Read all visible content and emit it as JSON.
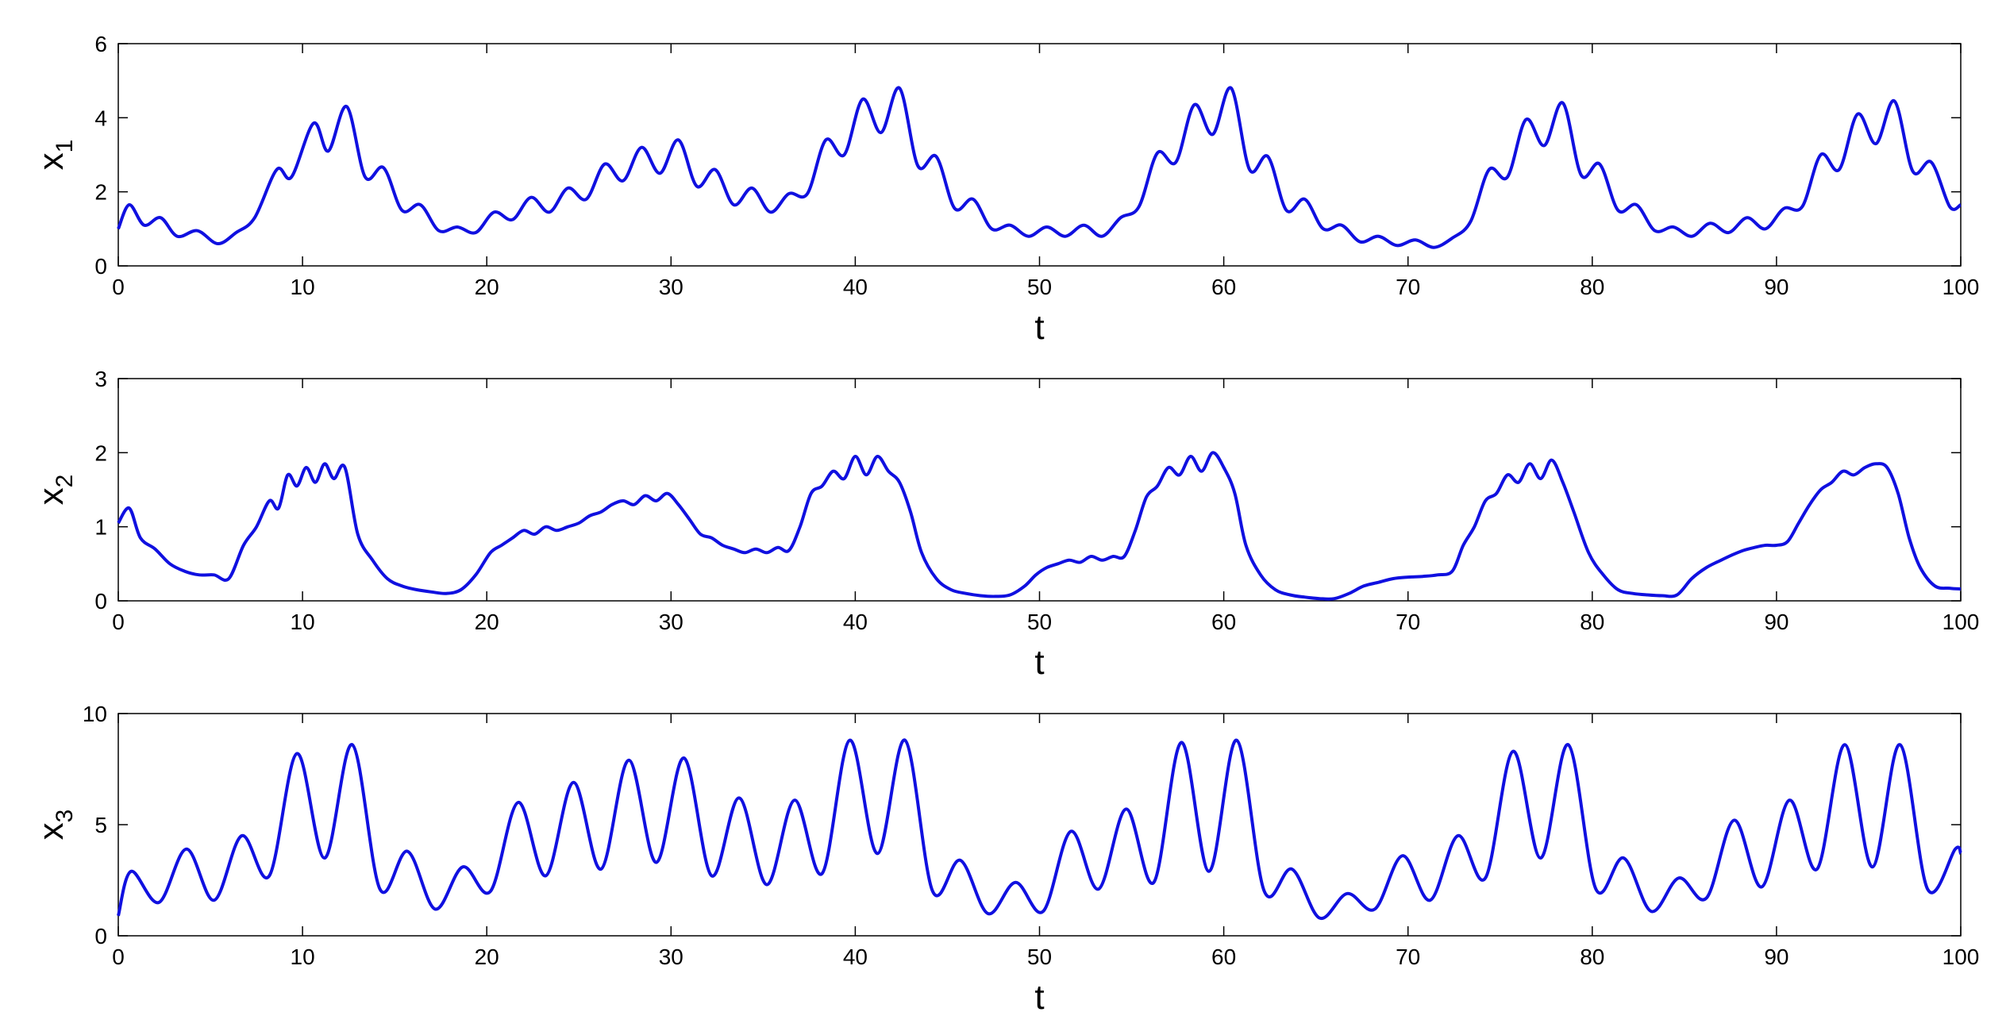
{
  "chart_data": [
    {
      "type": "line",
      "xlabel": "t",
      "ylabel": "x",
      "ylabel_sub": "1",
      "xlim": [
        0,
        100
      ],
      "ylim": [
        0,
        6
      ],
      "xticks": [
        0,
        10,
        20,
        30,
        40,
        50,
        60,
        70,
        80,
        90,
        100
      ],
      "yticks": [
        0,
        2,
        4,
        6
      ],
      "line_color": "#1010e0",
      "grid": false,
      "series": [
        {
          "x": [
            0,
            0.6,
            1.4,
            2.3,
            3.2,
            4.3,
            5.4,
            6.4,
            7.4,
            8.6,
            9.4,
            10.6,
            11.4,
            12.4,
            13.4,
            14.4,
            15.4,
            16.4,
            17.4,
            18.4,
            19.4,
            20.4,
            21.4,
            22.4,
            23.4,
            24.4,
            25.4,
            26.4,
            27.4,
            28.4,
            29.4,
            30.4,
            31.4,
            32.4,
            33.4,
            34.4,
            35.4,
            36.4,
            37.4,
            38.4,
            39.4,
            40.4,
            41.4,
            42.4,
            43.4,
            44.4,
            45.4,
            46.4,
            47.4,
            48.4,
            49.4,
            50.4,
            51.4,
            52.4,
            53.4,
            54.4,
            55.4,
            56.4,
            57.4,
            58.4,
            59.4,
            60.4,
            61.4,
            62.4,
            63.4,
            64.4,
            65.4,
            66.4,
            67.4,
            68.4,
            69.4,
            70.4,
            71.4,
            72.4,
            73.4,
            74.4,
            75.4,
            76.4,
            77.4,
            78.4,
            79.4,
            80.4,
            81.4,
            82.4,
            83.4,
            84.4,
            85.4,
            86.4,
            87.4,
            88.4,
            89.4,
            90.4,
            91.4,
            92.4,
            93.4,
            94.4,
            95.4,
            96.4,
            97.4,
            98.4,
            99.4,
            100
          ],
          "y": [
            1.0,
            1.65,
            1.1,
            1.3,
            0.8,
            0.95,
            0.6,
            0.9,
            1.3,
            2.6,
            2.4,
            3.85,
            3.1,
            4.3,
            2.4,
            2.65,
            1.5,
            1.65,
            0.95,
            1.05,
            0.9,
            1.45,
            1.25,
            1.85,
            1.45,
            2.1,
            1.8,
            2.75,
            2.3,
            3.2,
            2.5,
            3.4,
            2.15,
            2.6,
            1.65,
            2.1,
            1.45,
            1.95,
            1.95,
            3.4,
            3.0,
            4.5,
            3.6,
            4.8,
            2.7,
            2.95,
            1.55,
            1.8,
            1.0,
            1.1,
            0.8,
            1.05,
            0.8,
            1.1,
            0.8,
            1.3,
            1.6,
            3.05,
            2.8,
            4.35,
            3.55,
            4.8,
            2.6,
            2.95,
            1.5,
            1.8,
            1.0,
            1.1,
            0.65,
            0.8,
            0.55,
            0.7,
            0.5,
            0.75,
            1.2,
            2.6,
            2.4,
            3.95,
            3.25,
            4.4,
            2.45,
            2.75,
            1.5,
            1.65,
            0.95,
            1.05,
            0.8,
            1.15,
            0.9,
            1.3,
            1.0,
            1.55,
            1.6,
            3.0,
            2.6,
            4.1,
            3.3,
            4.45,
            2.55,
            2.8,
            1.6,
            1.65
          ]
        }
      ]
    },
    {
      "type": "line",
      "xlabel": "t",
      "ylabel": "x",
      "ylabel_sub": "2",
      "xlim": [
        0,
        100
      ],
      "ylim": [
        0,
        3
      ],
      "xticks": [
        0,
        10,
        20,
        30,
        40,
        50,
        60,
        70,
        80,
        90,
        100
      ],
      "yticks": [
        0,
        1,
        2,
        3
      ],
      "line_color": "#1010e0",
      "grid": false,
      "series": [
        {
          "x": [
            0,
            0.6,
            1.2,
            2.0,
            2.8,
            3.6,
            4.4,
            5.2,
            6.0,
            6.8,
            7.5,
            8.2,
            8.7,
            9.2,
            9.7,
            10.2,
            10.7,
            11.2,
            11.7,
            12.3,
            13.0,
            13.8,
            14.6,
            15.4,
            16.2,
            17.0,
            17.8,
            18.6,
            19.4,
            20.2,
            20.8,
            21.4,
            22.0,
            22.6,
            23.2,
            23.8,
            24.4,
            25.0,
            25.6,
            26.2,
            26.8,
            27.4,
            28.0,
            28.6,
            29.2,
            29.8,
            30.4,
            31.0,
            31.6,
            32.2,
            32.8,
            33.4,
            34.0,
            34.6,
            35.2,
            35.8,
            36.4,
            37.0,
            37.6,
            38.2,
            38.8,
            39.4,
            40.0,
            40.6,
            41.2,
            41.8,
            42.4,
            43.0,
            43.6,
            44.4,
            45.2,
            46.0,
            46.8,
            47.6,
            48.4,
            49.2,
            49.8,
            50.4,
            51.0,
            51.6,
            52.2,
            52.8,
            53.4,
            54.0,
            54.6,
            55.2,
            55.8,
            56.4,
            57.0,
            57.6,
            58.2,
            58.8,
            59.4,
            60.0,
            60.6,
            61.2,
            62.0,
            62.8,
            63.6,
            64.4,
            65.2,
            66.0,
            66.8,
            67.6,
            68.4,
            69.2,
            70.0,
            70.8,
            71.6,
            72.4,
            73.0,
            73.6,
            74.2,
            74.8,
            75.4,
            76.0,
            76.6,
            77.2,
            77.8,
            78.4,
            79.0,
            79.8,
            80.6,
            81.4,
            82.2,
            83.0,
            83.8,
            84.6,
            85.4,
            86.2,
            87.0,
            87.6,
            88.2,
            88.8,
            89.4,
            90.0,
            90.6,
            91.2,
            91.8,
            92.4,
            93.0,
            93.6,
            94.2,
            94.8,
            95.4,
            96.0,
            96.6,
            97.2,
            97.8,
            98.6,
            99.4,
            100
          ],
          "y": [
            1.05,
            1.25,
            0.85,
            0.7,
            0.5,
            0.4,
            0.35,
            0.35,
            0.3,
            0.75,
            1.0,
            1.35,
            1.25,
            1.7,
            1.55,
            1.8,
            1.6,
            1.85,
            1.65,
            1.8,
            0.9,
            0.55,
            0.3,
            0.2,
            0.15,
            0.12,
            0.1,
            0.15,
            0.35,
            0.65,
            0.75,
            0.85,
            0.95,
            0.9,
            1.0,
            0.95,
            1.0,
            1.05,
            1.15,
            1.2,
            1.3,
            1.35,
            1.3,
            1.42,
            1.35,
            1.45,
            1.3,
            1.1,
            0.9,
            0.85,
            0.75,
            0.7,
            0.65,
            0.7,
            0.65,
            0.72,
            0.68,
            1.0,
            1.45,
            1.55,
            1.75,
            1.65,
            1.95,
            1.7,
            1.95,
            1.75,
            1.6,
            1.2,
            0.65,
            0.3,
            0.15,
            0.1,
            0.07,
            0.06,
            0.08,
            0.2,
            0.35,
            0.45,
            0.5,
            0.55,
            0.52,
            0.6,
            0.55,
            0.6,
            0.6,
            0.95,
            1.4,
            1.55,
            1.8,
            1.7,
            1.95,
            1.75,
            2.0,
            1.8,
            1.45,
            0.75,
            0.35,
            0.15,
            0.08,
            0.05,
            0.03,
            0.03,
            0.1,
            0.2,
            0.25,
            0.3,
            0.32,
            0.33,
            0.35,
            0.4,
            0.75,
            1.0,
            1.35,
            1.45,
            1.7,
            1.6,
            1.85,
            1.65,
            1.9,
            1.6,
            1.2,
            0.65,
            0.35,
            0.15,
            0.1,
            0.08,
            0.07,
            0.08,
            0.3,
            0.45,
            0.55,
            0.62,
            0.68,
            0.72,
            0.75,
            0.75,
            0.8,
            1.05,
            1.3,
            1.5,
            1.6,
            1.75,
            1.7,
            1.8,
            1.85,
            1.8,
            1.45,
            0.85,
            0.45,
            0.2,
            0.17,
            0.16
          ]
        }
      ]
    },
    {
      "type": "line",
      "xlabel": "t",
      "ylabel": "x",
      "ylabel_sub": "3",
      "xlim": [
        0,
        100
      ],
      "ylim": [
        0,
        10
      ],
      "xticks": [
        0,
        10,
        20,
        30,
        40,
        50,
        60,
        70,
        80,
        90,
        100
      ],
      "yticks": [
        0,
        5,
        10
      ],
      "line_color": "#1010e0",
      "grid": false,
      "series": [
        {
          "x": [
            0,
            0.7,
            2.2,
            3.7,
            5.2,
            6.7,
            8.2,
            9.7,
            11.2,
            12.7,
            14.2,
            15.7,
            17.2,
            18.7,
            20.2,
            21.7,
            23.2,
            24.7,
            26.2,
            27.7,
            29.2,
            30.7,
            32.2,
            33.7,
            35.2,
            36.7,
            38.2,
            39.7,
            41.2,
            42.7,
            44.2,
            45.7,
            47.2,
            48.7,
            50.2,
            51.7,
            53.2,
            54.7,
            56.2,
            57.7,
            59.2,
            60.7,
            62.2,
            63.7,
            65.2,
            66.7,
            68.2,
            69.7,
            71.2,
            72.7,
            74.2,
            75.7,
            77.2,
            78.7,
            80.2,
            81.7,
            83.2,
            84.7,
            86.2,
            87.7,
            89.2,
            90.7,
            92.2,
            93.7,
            95.2,
            96.7,
            98.2,
            99.7,
            100
          ],
          "y": [
            0.9,
            2.9,
            1.5,
            3.9,
            1.6,
            4.5,
            2.7,
            8.2,
            3.5,
            8.6,
            2.1,
            3.8,
            1.2,
            3.1,
            2.0,
            6.0,
            2.7,
            6.9,
            3.0,
            7.9,
            3.3,
            8.0,
            2.7,
            6.2,
            2.3,
            6.1,
            2.8,
            8.8,
            3.7,
            8.8,
            2.0,
            3.4,
            1.0,
            2.4,
            1.1,
            4.7,
            2.1,
            5.7,
            2.4,
            8.7,
            2.9,
            8.8,
            2.0,
            3.0,
            0.8,
            1.9,
            1.2,
            3.6,
            1.6,
            4.5,
            2.6,
            8.3,
            3.5,
            8.6,
            2.1,
            3.5,
            1.1,
            2.6,
            1.7,
            5.2,
            2.2,
            6.1,
            3.0,
            8.6,
            3.1,
            8.6,
            2.1,
            3.9,
            3.7
          ]
        }
      ]
    }
  ]
}
